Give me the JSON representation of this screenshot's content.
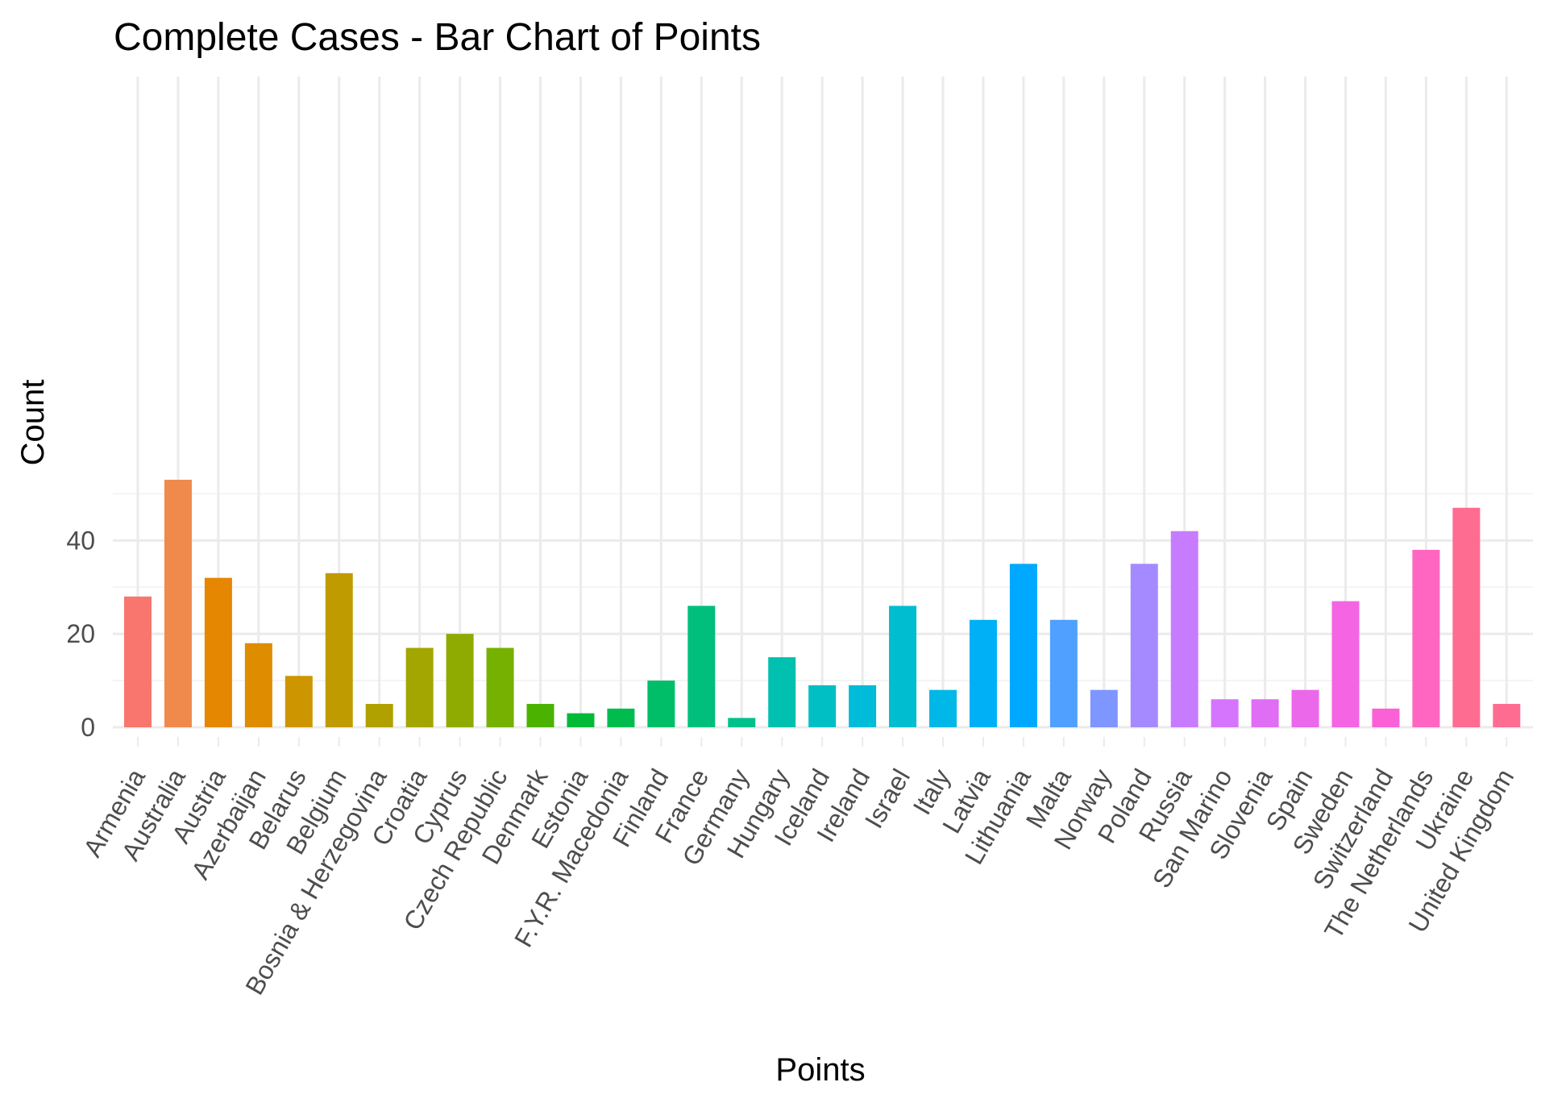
{
  "chart_data": {
    "type": "bar",
    "title": "Complete Cases - Bar Chart of  Points",
    "xlabel": "Points",
    "ylabel": "Count",
    "ylim": [
      0,
      55
    ],
    "y_ticks": [
      0,
      20,
      40
    ],
    "grid": true,
    "legend": "none",
    "categories": [
      "Armenia",
      "Australia",
      "Austria",
      "Azerbaijan",
      "Belarus",
      "Belgium",
      "Bosnia & Herzegovina",
      "Croatia",
      "Cyprus",
      "Czech Republic",
      "Denmark",
      "Estonia",
      "F.Y.R. Macedonia",
      "Finland",
      "France",
      "Germany",
      "Hungary",
      "Iceland",
      "Ireland",
      "Israel",
      "Italy",
      "Latvia",
      "Lithuania",
      "Malta",
      "Norway",
      "Poland",
      "Russia",
      "San Marino",
      "Slovenia",
      "Spain",
      "Sweden",
      "Switzerland",
      "The Netherlands",
      "Ukraine",
      "United Kingdom"
    ],
    "values": [
      28,
      53,
      32,
      18,
      11,
      33,
      5,
      17,
      20,
      17,
      5,
      3,
      4,
      10,
      26,
      2,
      15,
      9,
      9,
      26,
      8,
      23,
      35,
      23,
      8,
      35,
      42,
      6,
      6,
      8,
      27,
      4,
      38,
      47,
      5
    ],
    "colors": [
      "#F8766D",
      "#F08A4C",
      "#E58700",
      "#DE8C00",
      "#CD9600",
      "#C09B00",
      "#B0A000",
      "#A3A500",
      "#8FAA00",
      "#76B000",
      "#4CB200",
      "#00BA38",
      "#00BC4E",
      "#00BE67",
      "#00BF7D",
      "#00C08B",
      "#00C0AF",
      "#00BFC4",
      "#00BCD8",
      "#00BDD0",
      "#00B8E7",
      "#00B0F6",
      "#00A9FF",
      "#4FA0FF",
      "#7E96FF",
      "#A58AFF",
      "#C77CFF",
      "#D575FE",
      "#E06EF5",
      "#EB68EA",
      "#F564E3",
      "#FB61D7",
      "#FF66C2",
      "#FF6C91",
      "#FF6C91"
    ]
  }
}
